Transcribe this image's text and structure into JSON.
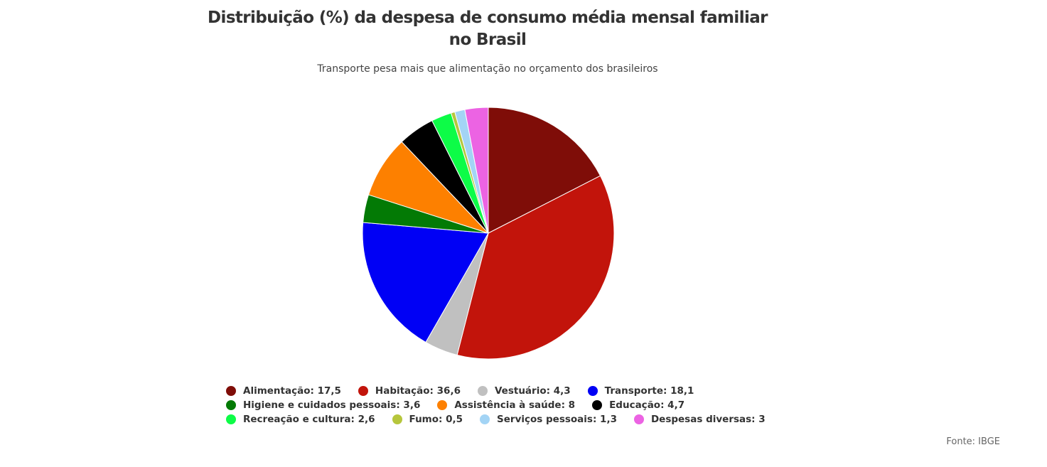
{
  "chart_data": {
    "type": "pie",
    "title": "Distribuição (%) da despesa de consumo média mensal familiar no Brasil",
    "subtitle": "Transporte pesa mais que alimentação no orçamento dos brasileiros",
    "source": "Fonte: IBGE",
    "legend_position": "bottom",
    "slices": [
      {
        "label": "Alimentação",
        "value": 17.5,
        "display": "17,5",
        "color": "#7f0d08"
      },
      {
        "label": "Habitação",
        "value": 36.6,
        "display": "36,6",
        "color": "#c2140b"
      },
      {
        "label": "Vestuário",
        "value": 4.3,
        "display": "4,3",
        "color": "#c0c0c0"
      },
      {
        "label": "Transporte",
        "value": 18.1,
        "display": "18,1",
        "color": "#0000f5"
      },
      {
        "label": "Higiene e cuidados pessoais",
        "value": 3.6,
        "display": "3,6",
        "color": "#037a05"
      },
      {
        "label": "Assistência à saúde",
        "value": 8,
        "display": "8",
        "color": "#fd8000"
      },
      {
        "label": "Educação",
        "value": 4.7,
        "display": "4,7",
        "color": "#000000"
      },
      {
        "label": "Recreação e cultura",
        "value": 2.6,
        "display": "2,6",
        "color": "#0dfc47"
      },
      {
        "label": "Fumo",
        "value": 0.5,
        "display": "0,5",
        "color": "#b6c63c"
      },
      {
        "label": "Serviços pessoais",
        "value": 1.3,
        "display": "1,3",
        "color": "#a3d4f5"
      },
      {
        "label": "Despesas diversas",
        "value": 3,
        "display": "3",
        "color": "#ec63e3"
      }
    ]
  }
}
